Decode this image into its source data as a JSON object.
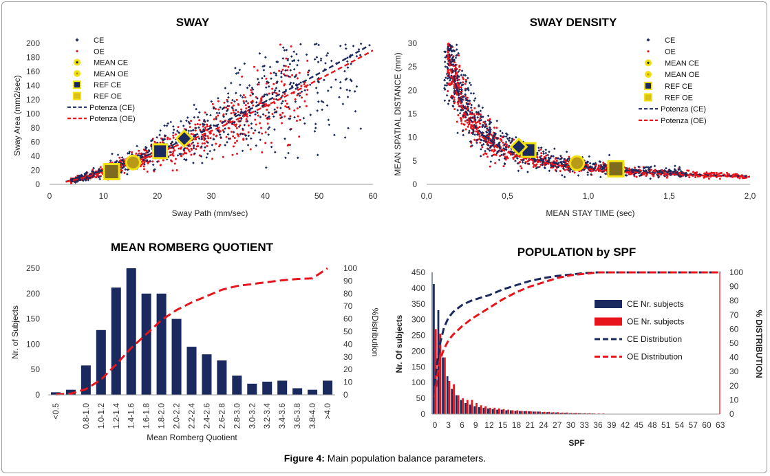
{
  "caption": {
    "label": "Figure 4:",
    "text": " Main population balance parameters."
  },
  "colors": {
    "ce": "#1b2a5e",
    "oe": "#e8141c",
    "ref": "#f2e10c",
    "mean": "#e7d00a"
  },
  "chart_data": [
    {
      "id": "sway",
      "type": "scatter",
      "title": "SWAY",
      "xlabel": "Sway Path (mm/sec)",
      "ylabel": "Sway Area (mm2/sec)",
      "xlim": [
        0,
        60
      ],
      "ylim": [
        0,
        200
      ],
      "xticks": [
        "0",
        "10",
        "20",
        "30",
        "40",
        "50",
        "60"
      ],
      "yticks": [
        "0",
        "20",
        "40",
        "60",
        "80",
        "100",
        "120",
        "140",
        "160",
        "180",
        "200"
      ],
      "legend": [
        "CE",
        "OE",
        "MEAN CE",
        "MEAN OE",
        "REF CE",
        "REF OE",
        "Potenza (CE)",
        "Potenza (OE)"
      ],
      "markers": {
        "mean_ce": [
          25,
          65
        ],
        "mean_oe": [
          15.5,
          31
        ],
        "ref_ce": [
          20.5,
          47
        ],
        "ref_oe": [
          11.5,
          18
        ]
      },
      "trend": {
        "ce": {
          "a": 0.9,
          "b": 1.32
        },
        "oe": {
          "a": 0.82,
          "b": 1.33
        }
      }
    },
    {
      "id": "density",
      "type": "scatter",
      "title": "SWAY DENSITY",
      "xlabel": "MEAN STAY TIME (sec)",
      "ylabel": "MEAN SPATIAL DISTANCE (mm)",
      "xlim": [
        0,
        2
      ],
      "ylim": [
        0,
        30
      ],
      "xticks": [
        "0,0",
        "0,5",
        "1,0",
        "1,5",
        "2,0"
      ],
      "yticks": [
        "0",
        "5",
        "10",
        "15",
        "20",
        "25",
        "30"
      ],
      "legend": [
        "CE",
        "OE",
        "MEAN CE",
        "MEAN OE",
        "REF CE",
        "REF OE",
        "Potenza (CE)",
        "Potenza (OE)"
      ],
      "markers": {
        "mean_ce": [
          0.57,
          8
        ],
        "mean_oe": [
          0.93,
          4.5
        ],
        "ref_ce": [
          0.63,
          7.3
        ],
        "ref_oe": [
          1.17,
          3.3
        ]
      },
      "trend": {
        "ce": {
          "a": 3.5,
          "b": -1.05
        },
        "oe": {
          "a": 3.3,
          "b": -1.05
        }
      }
    },
    {
      "id": "romberg",
      "type": "bar",
      "title": "MEAN ROMBERG QUOTIENT",
      "xlabel": "Mean Romberg Quotient",
      "ylabel": "Nr. of Subjects",
      "y2label": "%Distribution",
      "ylim": [
        0,
        250
      ],
      "y2lim": [
        0,
        100
      ],
      "yticks": [
        "0",
        "50",
        "100",
        "150",
        "200",
        "250"
      ],
      "y2ticks": [
        "0",
        "10",
        "20",
        "30",
        "40",
        "50",
        "60",
        "70",
        "80",
        "90",
        "100"
      ],
      "categories": [
        "<0.5",
        "",
        "0.8-1.0",
        "1.0-1.2",
        "1.2-1.4",
        "1.4-1.6",
        "1.6-1.8",
        "1.8-2.0",
        "2.0-2.2",
        "2.2-2.4",
        "2.4-2.6",
        "2.6-2.8",
        "2.8-3.0",
        "3.0-3.2",
        "3.2-3.4",
        "3.4-3.6",
        "3.6-3.8",
        "3.8-4.0",
        ">4.0"
      ],
      "series": [
        {
          "name": "Nr. of Subjects",
          "values": [
            5,
            10,
            58,
            128,
            212,
            250,
            200,
            200,
            150,
            95,
            80,
            68,
            38,
            22,
            26,
            28,
            13,
            10,
            28
          ]
        },
        {
          "name": "%Distribution",
          "values": [
            0.3,
            1,
            4.5,
            12,
            24,
            37,
            48,
            59,
            67,
            73,
            78,
            83,
            86,
            87.5,
            89,
            90.5,
            91.5,
            92,
            100
          ]
        }
      ]
    },
    {
      "id": "spf",
      "type": "bar",
      "title": "POPULATION by SPF",
      "xlabel": "SPF",
      "ylabel": "Nr. Of subjects",
      "y2label": "% DISTRIBUTION",
      "ylim": [
        0,
        450
      ],
      "y2lim": [
        0,
        100
      ],
      "yticks": [
        "0",
        "50",
        "100",
        "150",
        "200",
        "250",
        "300",
        "350",
        "400",
        "450"
      ],
      "y2ticks": [
        "0",
        "10",
        "20",
        "30",
        "40",
        "50",
        "60",
        "70",
        "80",
        "90",
        "100"
      ],
      "xticks": [
        "0",
        "3",
        "6",
        "9",
        "12",
        "15",
        "18",
        "21",
        "24",
        "27",
        "30",
        "33",
        "36",
        "39",
        "42",
        "45",
        "48",
        "51",
        "54",
        "57",
        "60",
        "63"
      ],
      "legend": [
        "CE Nr. subjects",
        "OE Nr. subjects",
        "CE Distribution",
        "OE Distribution"
      ],
      "series": [
        {
          "name": "CE Nr. subjects",
          "values": [
            413,
            330,
            180,
            120,
            80,
            60,
            45,
            35,
            30,
            25,
            22,
            20,
            18,
            16,
            14,
            14,
            12,
            12,
            10,
            10,
            9,
            9,
            8,
            8,
            6,
            6,
            5,
            5,
            4,
            4,
            3,
            3,
            3,
            2,
            2,
            2,
            1,
            1,
            1,
            1,
            1,
            1,
            1,
            1,
            1,
            0,
            0,
            0,
            0,
            0,
            0,
            0,
            0,
            0,
            0,
            0,
            0,
            0,
            0,
            0,
            0,
            0,
            0,
            0
          ]
        },
        {
          "name": "OE Nr. subjects",
          "values": [
            270,
            255,
            180,
            105,
            95,
            60,
            50,
            45,
            45,
            35,
            28,
            25,
            20,
            20,
            18,
            16,
            14,
            12,
            12,
            10,
            10,
            9,
            8,
            8,
            7,
            7,
            6,
            6,
            5,
            5,
            4,
            4,
            3,
            3,
            3,
            2,
            2,
            2,
            1,
            1,
            1,
            1,
            1,
            1,
            1,
            1,
            0,
            0,
            0,
            0,
            0,
            0,
            0,
            0,
            0,
            0,
            0,
            0,
            0,
            0,
            0,
            0,
            0,
            0
          ]
        },
        {
          "name": "CE Distribution",
          "points": [
            [
              0,
              20
            ],
            [
              0.5,
              36
            ],
            [
              1,
              48
            ],
            [
              2,
              61
            ],
            [
              3,
              68
            ],
            [
              4,
              72
            ],
            [
              6,
              77
            ],
            [
              8,
              80
            ],
            [
              10,
              82
            ],
            [
              12,
              84
            ],
            [
              15,
              88
            ],
            [
              18,
              91
            ],
            [
              21,
              94
            ],
            [
              24,
              96
            ],
            [
              27,
              97.5
            ],
            [
              30,
              98.5
            ],
            [
              33,
              99.5
            ],
            [
              36,
              100
            ],
            [
              63,
              100
            ]
          ]
        },
        {
          "name": "OE Distribution",
          "points": [
            [
              0,
              12
            ],
            [
              0.5,
              26
            ],
            [
              1,
              37
            ],
            [
              2,
              46
            ],
            [
              3,
              52
            ],
            [
              4,
              56
            ],
            [
              6,
              62
            ],
            [
              8,
              67
            ],
            [
              10,
              71
            ],
            [
              12,
              75
            ],
            [
              15,
              81
            ],
            [
              18,
              86
            ],
            [
              21,
              90
            ],
            [
              24,
              93
            ],
            [
              27,
              96
            ],
            [
              30,
              98
            ],
            [
              33,
              99
            ],
            [
              36,
              100
            ],
            [
              63,
              100
            ]
          ]
        }
      ]
    }
  ]
}
